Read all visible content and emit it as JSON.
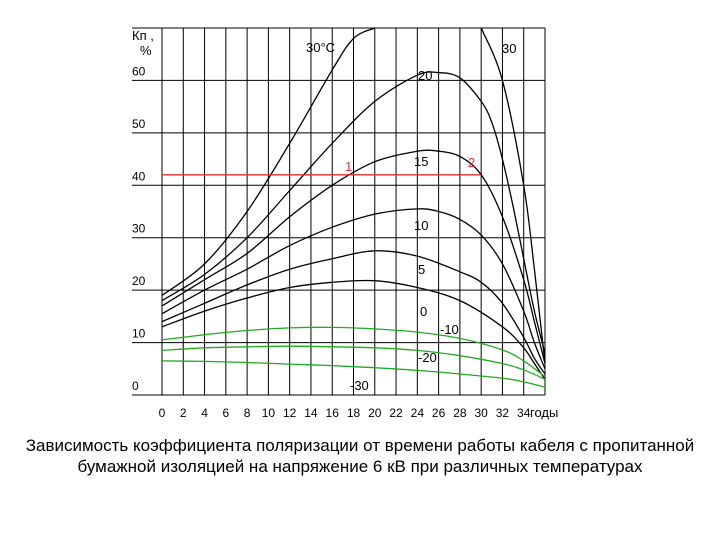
{
  "caption": "Зависимость коэффициента поляризации  от времени работы кабеля с пропитанной бумажной изоляцией на напряжение 6 кВ при различных температурах",
  "colors": {
    "grid": "#000000",
    "black_curves": "#000000",
    "green_curves": "#22aa22",
    "red_line": "#e03030"
  },
  "chart_data": {
    "type": "line",
    "y_axis_label_line1": "Кп ,",
    "y_axis_label_line2": "%",
    "x_axis_unit": "годы",
    "xlim": [
      0,
      36
    ],
    "ylim": [
      0,
      70
    ],
    "x_ticks": [
      0,
      2,
      4,
      6,
      8,
      10,
      12,
      14,
      16,
      18,
      20,
      22,
      24,
      26,
      28,
      30,
      32,
      34
    ],
    "y_ticks": [
      0,
      10,
      20,
      30,
      40,
      50,
      60
    ],
    "grid": true,
    "series": [
      {
        "name": "30°C",
        "label": "30°С",
        "color": "black",
        "x": [
          0,
          4,
          8,
          12,
          16,
          18,
          20
        ],
        "y": [
          19,
          25,
          35,
          48,
          62,
          68,
          70
        ]
      },
      {
        "name": "30",
        "label": "30",
        "color": "black",
        "x": [
          30,
          32,
          34,
          35,
          36
        ],
        "y": [
          70,
          60,
          40,
          24,
          6
        ]
      },
      {
        "name": "20",
        "label": "20",
        "color": "black",
        "x": [
          0,
          4,
          8,
          12,
          16,
          20,
          24,
          26,
          28,
          30,
          31,
          32,
          33,
          34,
          35,
          36
        ],
        "y": [
          18,
          23,
          30,
          39,
          48,
          56,
          61,
          61.5,
          60.5,
          56,
          52,
          45,
          36,
          26,
          16,
          8
        ]
      },
      {
        "name": "15",
        "label": "15",
        "color": "black",
        "x": [
          0,
          4,
          8,
          12,
          16,
          20,
          24,
          26,
          28,
          30,
          32,
          34,
          35,
          36
        ],
        "y": [
          17,
          22,
          27,
          34,
          40,
          44.5,
          46.5,
          46.5,
          45.5,
          42,
          34,
          22,
          14,
          6
        ]
      },
      {
        "name": "10",
        "label": "10",
        "color": "black",
        "x": [
          0,
          4,
          8,
          12,
          16,
          20,
          24,
          26,
          28,
          30,
          32,
          34,
          35,
          36
        ],
        "y": [
          15.5,
          20,
          24,
          28.5,
          32,
          34.5,
          35.5,
          35,
          33.5,
          30.5,
          25,
          16,
          10,
          5
        ]
      },
      {
        "name": "5",
        "label": "5",
        "color": "black",
        "x": [
          0,
          4,
          8,
          12,
          16,
          20,
          24,
          28,
          30,
          32,
          34,
          35,
          36
        ],
        "y": [
          14,
          17.5,
          21,
          24,
          26,
          27.5,
          26.5,
          23.5,
          21.5,
          17.5,
          11,
          7,
          4
        ]
      },
      {
        "name": "0",
        "label": "0",
        "color": "black",
        "x": [
          0,
          4,
          8,
          12,
          16,
          20,
          24,
          28,
          32,
          34,
          35,
          36
        ],
        "y": [
          13,
          16,
          18.5,
          20.5,
          21.5,
          21.8,
          20.5,
          18,
          13,
          9,
          6,
          3
        ]
      },
      {
        "name": "-10",
        "label": "-10",
        "color": "green",
        "x": [
          0,
          4,
          8,
          12,
          16,
          20,
          24,
          28,
          32,
          34,
          36
        ],
        "y": [
          10.5,
          11.5,
          12.3,
          12.8,
          12.9,
          12.6,
          12,
          10.8,
          8.6,
          6.5,
          3.5
        ]
      },
      {
        "name": "-20",
        "label": "-20",
        "color": "green",
        "x": [
          0,
          4,
          8,
          12,
          16,
          20,
          24,
          28,
          32,
          34,
          36
        ],
        "y": [
          8.5,
          9,
          9.2,
          9.3,
          9.2,
          9,
          8.5,
          7.5,
          6,
          4.8,
          3
        ]
      },
      {
        "name": "-30",
        "label": "-30",
        "color": "green",
        "x": [
          0,
          4,
          8,
          12,
          16,
          20,
          24,
          28,
          32,
          34,
          36
        ],
        "y": [
          6.5,
          6.4,
          6.2,
          5.9,
          5.6,
          5.2,
          4.7,
          4,
          3.2,
          2.5,
          1.5
        ]
      }
    ],
    "annotations": [
      {
        "text": "1",
        "x": 18,
        "y": 42,
        "color": "red"
      },
      {
        "text": "2",
        "x": 30,
        "y": 42.5,
        "color": "red"
      }
    ],
    "red_line": {
      "y": 42,
      "x_from": 0,
      "x_to": 30
    }
  }
}
